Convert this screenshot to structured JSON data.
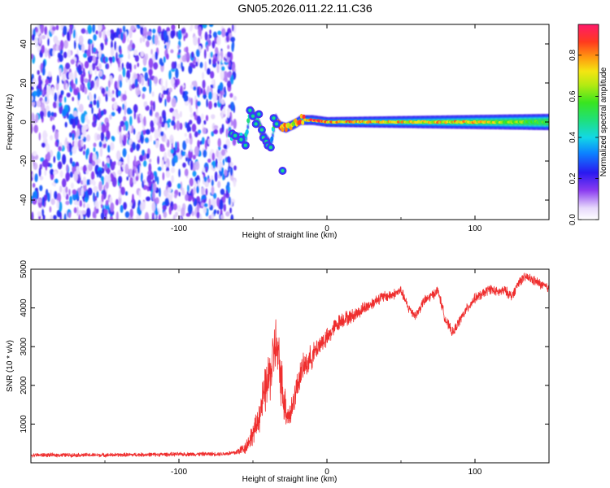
{
  "title": "GN05.2026.011.22.11.C36",
  "chart_data": [
    {
      "type": "heatmap",
      "xlabel": "Height of straight line (km)",
      "ylabel": "Frequency (Hz)",
      "xlim": [
        -200,
        150
      ],
      "ylim": [
        -50,
        50
      ],
      "xticks": [
        -100,
        0,
        100
      ],
      "xtick_labels": [
        "-100",
        "0",
        "100"
      ],
      "yticks": [
        -40,
        -20,
        0,
        20,
        40
      ],
      "ytick_labels": [
        "-40",
        "-20",
        "0",
        "20",
        "40"
      ],
      "colorbar": {
        "label": "Normalized spectral amplitude",
        "range": [
          0,
          0.95
        ],
        "ticks": [
          0,
          0.2,
          0.4,
          0.6,
          0.8
        ],
        "tick_labels": [
          "0.0",
          "0.2",
          "0.4",
          "0.6",
          "0.8"
        ]
      },
      "features": {
        "noise_region_x": [
          -200,
          -62
        ],
        "noise_level": 0.18,
        "ridge": [
          {
            "x": -65,
            "f": -7,
            "a": 0.55
          },
          {
            "x": -55,
            "f": -9,
            "a": 0.5
          },
          {
            "x": -52,
            "f": 6,
            "a": 0.55
          },
          {
            "x": -48,
            "f": 2,
            "a": 0.5
          },
          {
            "x": -45,
            "f": -3,
            "a": 0.55
          },
          {
            "x": -42,
            "f": -8,
            "a": 0.5
          },
          {
            "x": -38,
            "f": -12,
            "a": 0.35
          },
          {
            "x": -35,
            "f": 2,
            "a": 0.7
          },
          {
            "x": -32,
            "f": -2,
            "a": 0.9
          },
          {
            "x": -28,
            "f": -3,
            "a": 0.85
          },
          {
            "x": -22,
            "f": -1,
            "a": 0.8
          },
          {
            "x": -18,
            "f": 1,
            "a": 0.95
          },
          {
            "x": -10,
            "f": 1,
            "a": 0.95
          },
          {
            "x": 0,
            "f": 0,
            "a": 0.9
          },
          {
            "x": 50,
            "f": 0,
            "a": 0.85
          },
          {
            "x": 100,
            "f": 0,
            "a": 0.85
          },
          {
            "x": 120,
            "f": 0,
            "a": 0.7
          },
          {
            "x": 150,
            "f": 0,
            "a": 0.6
          }
        ]
      }
    },
    {
      "type": "line",
      "xlabel": "Height of straight line (km)",
      "ylabel": "SNR (10 * v/v)",
      "xlim": [
        -200,
        150
      ],
      "ylim": [
        0,
        5000
      ],
      "xticks": [
        -100,
        0,
        100
      ],
      "xtick_labels": [
        "-100",
        "0",
        "100"
      ],
      "yticks": [
        1000,
        2000,
        3000,
        4000,
        5000
      ],
      "ytick_labels": [
        "1000",
        "2000",
        "3000",
        "4000",
        "5000"
      ],
      "color": "#ef2e2e",
      "series": [
        {
          "name": "SNR",
          "x": [
            -200,
            -150,
            -100,
            -70,
            -62,
            -55,
            -48,
            -44,
            -40,
            -37,
            -35,
            -33,
            -31,
            -29,
            -27,
            -25,
            -22,
            -20,
            -18,
            -15,
            -12,
            -9,
            -6,
            -3,
            0,
            5,
            10,
            15,
            20,
            25,
            30,
            35,
            40,
            45,
            50,
            55,
            60,
            65,
            70,
            75,
            80,
            85,
            90,
            95,
            100,
            105,
            110,
            115,
            120,
            125,
            130,
            135,
            140,
            145,
            150
          ],
          "y": [
            200,
            200,
            220,
            230,
            260,
            400,
            900,
            1500,
            2100,
            2500,
            3100,
            2700,
            2200,
            1600,
            1300,
            1200,
            1700,
            2000,
            2300,
            2500,
            2650,
            2800,
            3000,
            3150,
            3200,
            3500,
            3700,
            3750,
            3850,
            4000,
            4100,
            4250,
            4300,
            4350,
            4450,
            4000,
            3800,
            4150,
            4300,
            4450,
            3700,
            3350,
            3700,
            4000,
            4250,
            4350,
            4500,
            4400,
            4450,
            4300,
            4700,
            4800,
            4700,
            4600,
            4500
          ],
          "jitter": [
            60,
            60,
            60,
            60,
            80,
            200,
            400,
            600,
            800,
            900,
            900,
            900,
            800,
            700,
            500,
            450,
            450,
            400,
            420,
            400,
            400,
            350,
            330,
            300,
            300,
            250,
            250,
            220,
            200,
            200,
            180,
            180,
            170,
            160,
            150,
            150,
            150,
            150,
            150,
            150,
            150,
            150,
            150,
            150,
            150,
            150,
            150,
            150,
            150,
            150,
            150,
            150,
            150,
            150,
            150
          ]
        }
      ]
    }
  ]
}
